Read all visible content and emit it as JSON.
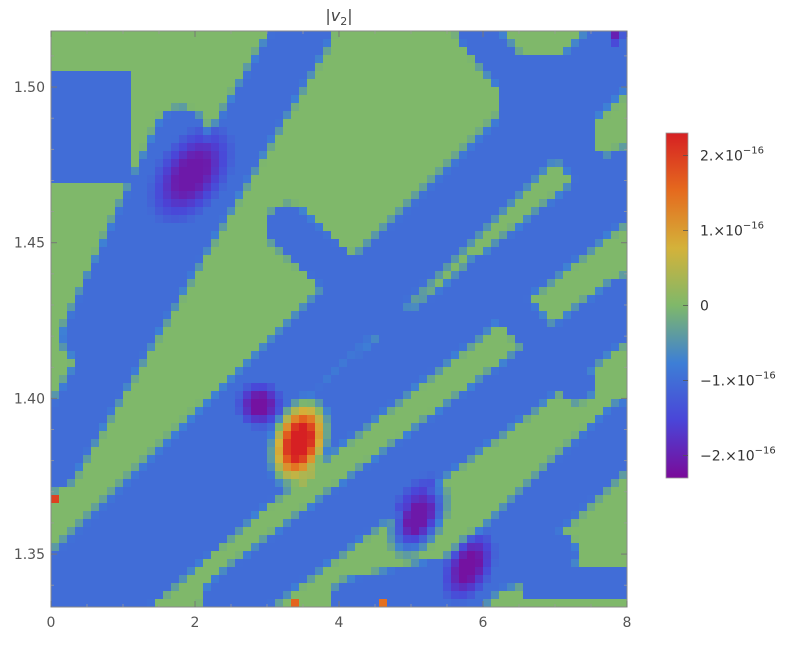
{
  "chart_data": {
    "type": "heatmap",
    "title": "|v2|",
    "xlim": [
      0,
      8
    ],
    "ylim": [
      1.333,
      1.518
    ],
    "x_ticks": [
      0,
      2,
      4,
      6,
      8
    ],
    "x_tick_labels": [
      "0",
      "2",
      "4",
      "6",
      "8"
    ],
    "y_ticks": [
      1.35,
      1.4,
      1.45,
      1.5
    ],
    "y_tick_labels": [
      "1.35",
      "1.40",
      "1.45",
      "1.50"
    ],
    "colorbar": {
      "min": -2.3e-16,
      "max": 2.3e-16,
      "ticks": [
        2e-16,
        1e-16,
        0,
        -1e-16,
        -2e-16
      ],
      "tick_labels": [
        {
          "mantissa": "2.",
          "times": "×",
          "base": "10",
          "exp": "−16"
        },
        {
          "mantissa": "1.",
          "times": "×",
          "base": "10",
          "exp": "−16"
        },
        {
          "mantissa": "0",
          "times": "",
          "base": "",
          "exp": ""
        },
        {
          "mantissa": "−1.",
          "times": "×",
          "base": "10",
          "exp": "−16"
        },
        {
          "mantissa": "−2.",
          "times": "×",
          "base": "10",
          "exp": "−16"
        }
      ],
      "colors": [
        "#7a0a99",
        "#4a45d8",
        "#3d7fd6",
        "#7fb86a",
        "#d4b23a",
        "#e56a1e",
        "#d62023"
      ]
    },
    "background_value": 0,
    "bands": [
      {
        "x1": 0.2,
        "y1": 1.339,
        "x2": 8.0,
        "y2": 1.515,
        "w": 0.55,
        "v": -1e-16
      },
      {
        "x1": 0.6,
        "y1": 1.335,
        "x2": 8.0,
        "y2": 1.47,
        "w": 0.5,
        "v": -1e-16
      },
      {
        "x1": 2.5,
        "y1": 1.335,
        "x2": 8.0,
        "y2": 1.43,
        "w": 0.45,
        "v": -1e-16
      },
      {
        "x1": 0.0,
        "y1": 1.38,
        "x2": 3.5,
        "y2": 1.518,
        "w": 0.45,
        "v": -1e-16
      },
      {
        "x1": 0.5,
        "y1": 1.42,
        "x2": 1.8,
        "y2": 1.485,
        "w": 0.4,
        "v": -1e-16
      },
      {
        "x1": 5.5,
        "y1": 1.335,
        "x2": 8.0,
        "y2": 1.39,
        "w": 0.45,
        "v": -1e-16
      },
      {
        "x1": 4.2,
        "y1": 1.335,
        "x2": 7.0,
        "y2": 1.35,
        "w": 0.35,
        "v": -1e-16
      },
      {
        "x1": 1.0,
        "y1": 1.335,
        "x2": 3.0,
        "y2": 1.375,
        "w": 0.35,
        "v": -1e-16
      },
      {
        "x1": 3.3,
        "y1": 1.455,
        "x2": 4.7,
        "y2": 1.425,
        "w": 0.35,
        "v": -1e-16
      },
      {
        "x1": 5.9,
        "y1": 1.518,
        "x2": 7.6,
        "y2": 1.47,
        "w": 0.3,
        "v": -1e-16
      },
      {
        "x1": 6.0,
        "y1": 1.44,
        "x2": 7.3,
        "y2": 1.405,
        "w": 0.3,
        "v": -1e-16
      }
    ],
    "blocks": [
      {
        "x0": 0.0,
        "y0": 1.468,
        "x1": 1.1,
        "y1": 1.505,
        "v": -1e-16
      },
      {
        "x0": 6.2,
        "y0": 1.48,
        "x1": 7.5,
        "y1": 1.51,
        "v": -1e-16
      },
      {
        "x0": 3.9,
        "y0": 1.425,
        "x1": 4.5,
        "y1": 1.445,
        "v": -1e-16
      },
      {
        "x0": 6.6,
        "y0": 1.335,
        "x1": 8.0,
        "y1": 1.345,
        "v": -1e-16
      }
    ],
    "blobs": [
      {
        "x": 1.95,
        "y": 1.472,
        "r": 0.55,
        "v": -2.1e-16,
        "ax": 0.7
      },
      {
        "x": 2.9,
        "y": 1.398,
        "r": 0.35,
        "v": -2.2e-16,
        "ax": 0.0
      },
      {
        "x": 3.45,
        "y": 1.386,
        "r": 0.4,
        "v": 2.3e-16,
        "ax": 0.3
      },
      {
        "x": 5.1,
        "y": 1.362,
        "r": 0.4,
        "v": -2.1e-16,
        "ax": 0.5
      },
      {
        "x": 5.8,
        "y": 1.346,
        "r": 0.35,
        "v": -2.2e-16,
        "ax": 0.5
      },
      {
        "x": 0.05,
        "y": 1.367,
        "r": 0.08,
        "v": 2.1e-16,
        "ax": 0.0
      },
      {
        "x": 7.85,
        "y": 1.516,
        "r": 0.12,
        "v": -2e-16,
        "ax": 0.0
      },
      {
        "x": 4.6,
        "y": 1.335,
        "r": 0.08,
        "v": 1.8e-16,
        "ax": 0.0
      },
      {
        "x": 3.4,
        "y": 1.334,
        "r": 0.08,
        "v": 1.6e-16,
        "ax": 0.0
      }
    ]
  }
}
